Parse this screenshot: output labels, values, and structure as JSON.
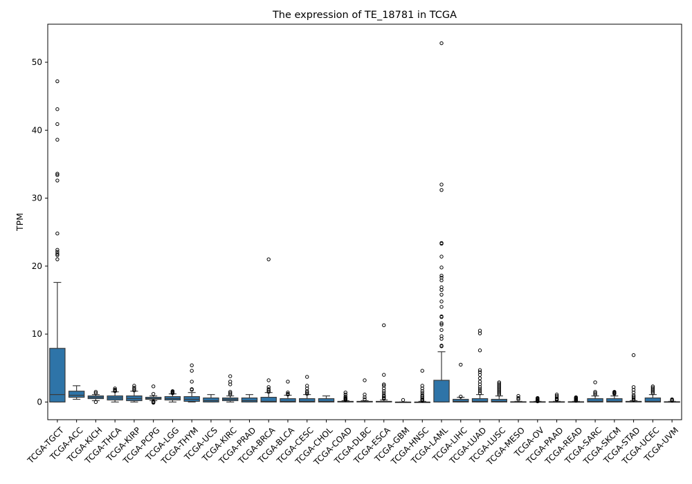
{
  "chart_data": {
    "type": "box",
    "title": "The expression of TE_18781 in TCGA",
    "xlabel": "",
    "ylabel": "TPM",
    "ylim": [
      -2.6,
      55.6
    ],
    "yticks": [
      0,
      10,
      20,
      30,
      40,
      50
    ],
    "grid": false,
    "legend": "none",
    "box_color": "#2e74a8",
    "categories": [
      "TCGA-TGCT",
      "TCGA-ACC",
      "TCGA-KICH",
      "TCGA-THCA",
      "TCGA-KIRP",
      "TCGA-PCPG",
      "TCGA-LGG",
      "TCGA-THYM",
      "TCGA-UCS",
      "TCGA-KIRC",
      "TCGA-PRAD",
      "TCGA-BRCA",
      "TCGA-BLCA",
      "TCGA-CESC",
      "TCGA-CHOL",
      "TCGA-COAD",
      "TCGA-DLBC",
      "TCGA-ESCA",
      "TCGA-GBM",
      "TCGA-HNSC",
      "TCGA-LAML",
      "TCGA-LIHC",
      "TCGA-LUAD",
      "TCGA-LUSC",
      "TCGA-MESO",
      "TCGA-OV",
      "TCGA-PAAD",
      "TCGA-READ",
      "TCGA-SARC",
      "TCGA-SKCM",
      "TCGA-STAD",
      "TCGA-UCEC",
      "TCGA-UVM"
    ],
    "boxes": [
      {
        "whislo": 0,
        "q1": 0,
        "med": 1.1,
        "q3": 7.9,
        "whishi": 17.6,
        "fliers": [
          47.2,
          43.1,
          40.9,
          38.6,
          33.6,
          33.4,
          32.6,
          24.8,
          22.4,
          22.1,
          21.8,
          21.6,
          21.0
        ]
      },
      {
        "whislo": 0.4,
        "q1": 0.7,
        "med": 1.0,
        "q3": 1.6,
        "whishi": 2.4,
        "fliers": []
      },
      {
        "whislo": 0.2,
        "q1": 0.5,
        "med": 0.7,
        "q3": 0.9,
        "whishi": 1.1,
        "fliers": [
          1.5,
          1.3,
          0.0
        ]
      },
      {
        "whislo": 0,
        "q1": 0.3,
        "med": 0.6,
        "q3": 0.9,
        "whishi": 1.5,
        "fliers": [
          2.0,
          1.8,
          1.7,
          1.6
        ]
      },
      {
        "whislo": 0,
        "q1": 0.2,
        "med": 0.5,
        "q3": 0.9,
        "whishi": 1.6,
        "fliers": [
          2.4,
          2.1,
          1.9,
          1.7
        ]
      },
      {
        "whislo": 0.2,
        "q1": 0.4,
        "med": 0.5,
        "q3": 0.7,
        "whishi": 0.9,
        "fliers": [
          2.3,
          1.2,
          0.1,
          0.0,
          -0.1
        ]
      },
      {
        "whislo": 0,
        "q1": 0.3,
        "med": 0.5,
        "q3": 0.8,
        "whishi": 1.2,
        "fliers": [
          1.6,
          1.5,
          1.4,
          1.3
        ]
      },
      {
        "whislo": 0,
        "q1": 0.1,
        "med": 0.4,
        "q3": 0.8,
        "whishi": 1.4,
        "fliers": [
          5.4,
          4.6,
          3.0,
          1.9,
          1.8
        ]
      },
      {
        "whislo": 0,
        "q1": 0,
        "med": 0.2,
        "q3": 0.6,
        "whishi": 1.1,
        "fliers": []
      },
      {
        "whislo": 0,
        "q1": 0.2,
        "med": 0.4,
        "q3": 0.6,
        "whishi": 0.9,
        "fliers": [
          3.8,
          3.0,
          2.6,
          1.5,
          1.3,
          1.1
        ]
      },
      {
        "whislo": 0,
        "q1": 0,
        "med": 0.2,
        "q3": 0.6,
        "whishi": 1.1,
        "fliers": []
      },
      {
        "whislo": 0,
        "q1": 0,
        "med": 0.1,
        "q3": 0.7,
        "whishi": 1.4,
        "fliers": [
          21.0,
          3.2,
          2.2,
          1.9,
          1.7,
          1.5
        ]
      },
      {
        "whislo": 0,
        "q1": 0,
        "med": 0.1,
        "q3": 0.5,
        "whishi": 1.0,
        "fliers": [
          3.0,
          1.4,
          1.2,
          1.1
        ]
      },
      {
        "whislo": 0,
        "q1": 0,
        "med": 0.1,
        "q3": 0.5,
        "whishi": 1.1,
        "fliers": [
          3.7,
          2.4,
          2.0,
          1.6,
          1.4,
          1.2
        ]
      },
      {
        "whislo": 0,
        "q1": 0,
        "med": 0.1,
        "q3": 0.5,
        "whishi": 0.9,
        "fliers": []
      },
      {
        "whislo": 0,
        "q1": 0,
        "med": 0.0,
        "q3": 0.1,
        "whishi": 0.2,
        "fliers": [
          1.4,
          1.1,
          0.8,
          0.6,
          0.5,
          0.4,
          0.3
        ]
      },
      {
        "whislo": 0,
        "q1": 0,
        "med": 0.0,
        "q3": 0.1,
        "whishi": 0.2,
        "fliers": [
          3.2,
          1.1,
          0.7,
          0.4
        ]
      },
      {
        "whislo": 0,
        "q1": 0,
        "med": 0.0,
        "q3": 0.1,
        "whishi": 0.3,
        "fliers": [
          11.3,
          4.0,
          2.6,
          2.4,
          2.0,
          1.6,
          1.3,
          1.0,
          0.8,
          0.6,
          0.5
        ]
      },
      {
        "whislo": 0,
        "q1": 0,
        "med": 0.0,
        "q3": 0.0,
        "whishi": 0.0,
        "fliers": [
          0.3
        ]
      },
      {
        "whislo": 0,
        "q1": 0,
        "med": 0.0,
        "q3": 0.0,
        "whishi": 0.1,
        "fliers": [
          4.6,
          2.4,
          2.0,
          1.6,
          1.3,
          1.0,
          0.8,
          0.6,
          0.4,
          0.3,
          0.2
        ]
      },
      {
        "whislo": 0,
        "q1": 0,
        "med": 0.0,
        "q3": 3.2,
        "whishi": 7.4,
        "fliers": [
          52.8,
          32.0,
          31.2,
          23.4,
          23.3,
          21.4,
          19.8,
          18.6,
          18.3,
          17.9,
          16.9,
          16.5,
          15.8,
          14.8,
          14.0,
          12.6,
          12.5,
          11.6,
          11.4,
          10.6,
          9.7,
          9.3,
          8.3,
          8.2
        ]
      },
      {
        "whislo": 0,
        "q1": 0,
        "med": 0.1,
        "q3": 0.4,
        "whishi": 0.7,
        "fliers": [
          5.5,
          0.8
        ]
      },
      {
        "whislo": 0,
        "q1": 0,
        "med": 0.1,
        "q3": 0.5,
        "whishi": 1.1,
        "fliers": [
          10.5,
          10.1,
          7.6,
          4.7,
          4.4,
          4.0,
          3.5,
          3.0,
          2.6,
          2.2,
          1.9,
          1.6,
          1.3
        ]
      },
      {
        "whislo": 0,
        "q1": 0,
        "med": 0.1,
        "q3": 0.4,
        "whishi": 0.9,
        "fliers": [
          2.9,
          2.7,
          2.5,
          2.3,
          2.1,
          1.9,
          1.7,
          1.5,
          1.3,
          1.1
        ]
      },
      {
        "whislo": 0,
        "q1": 0,
        "med": 0.0,
        "q3": 0.05,
        "whishi": 0.1,
        "fliers": [
          0.9,
          0.6,
          0.4
        ]
      },
      {
        "whislo": 0,
        "q1": 0,
        "med": 0.0,
        "q3": 0.05,
        "whishi": 0.1,
        "fliers": [
          0.6,
          0.5,
          0.4,
          0.3,
          0.2,
          0.1
        ]
      },
      {
        "whislo": 0,
        "q1": 0,
        "med": 0.0,
        "q3": 0.05,
        "whishi": 0.1,
        "fliers": [
          1.1,
          0.9,
          0.7,
          0.5,
          0.4,
          0.3
        ]
      },
      {
        "whislo": 0,
        "q1": 0,
        "med": 0.0,
        "q3": 0.05,
        "whishi": 0.1,
        "fliers": [
          0.7,
          0.6,
          0.5,
          0.4,
          0.3,
          0.2
        ]
      },
      {
        "whislo": 0,
        "q1": 0,
        "med": 0.1,
        "q3": 0.5,
        "whishi": 0.9,
        "fliers": [
          2.9,
          1.5,
          1.3,
          1.1
        ]
      },
      {
        "whislo": 0,
        "q1": 0,
        "med": 0.1,
        "q3": 0.5,
        "whishi": 0.9,
        "fliers": [
          1.5,
          1.4,
          1.3,
          1.2
        ]
      },
      {
        "whislo": 0,
        "q1": 0,
        "med": 0.0,
        "q3": 0.1,
        "whishi": 0.2,
        "fliers": [
          6.9,
          2.2,
          1.8,
          1.4,
          1.0,
          0.8,
          0.6,
          0.4,
          0.3
        ]
      },
      {
        "whislo": 0,
        "q1": 0,
        "med": 0.1,
        "q3": 0.6,
        "whishi": 1.1,
        "fliers": [
          2.3,
          2.1,
          1.9,
          1.7,
          1.5,
          1.3
        ]
      },
      {
        "whislo": 0,
        "q1": 0,
        "med": 0.0,
        "q3": 0.05,
        "whishi": 0.1,
        "fliers": [
          0.4,
          0.3,
          0.2
        ]
      }
    ]
  }
}
